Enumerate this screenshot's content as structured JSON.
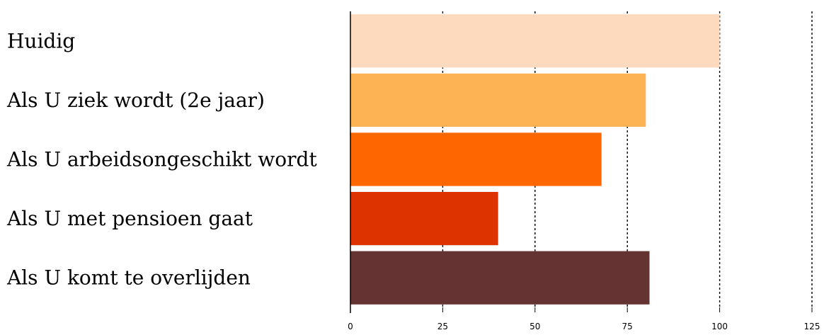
{
  "chart_data": {
    "type": "bar",
    "orientation": "horizontal",
    "title": "",
    "xlabel": "",
    "ylabel": "",
    "categories": [
      "Huidig",
      "Als U ziek wordt (2e jaar)",
      "Als U arbeidsongeschikt wordt",
      "Als U met pensioen gaat",
      "Als U komt te overlijden"
    ],
    "values": [
      100,
      80,
      68,
      40,
      81
    ],
    "colors": [
      "#fdd9bd",
      "#fdb253",
      "#fe6602",
      "#dc3300",
      "#663333"
    ],
    "xlim": [
      0,
      125
    ],
    "xticks": [
      0,
      25,
      50,
      75,
      100,
      125
    ],
    "grid": "vertical dashed",
    "legend": "none"
  }
}
